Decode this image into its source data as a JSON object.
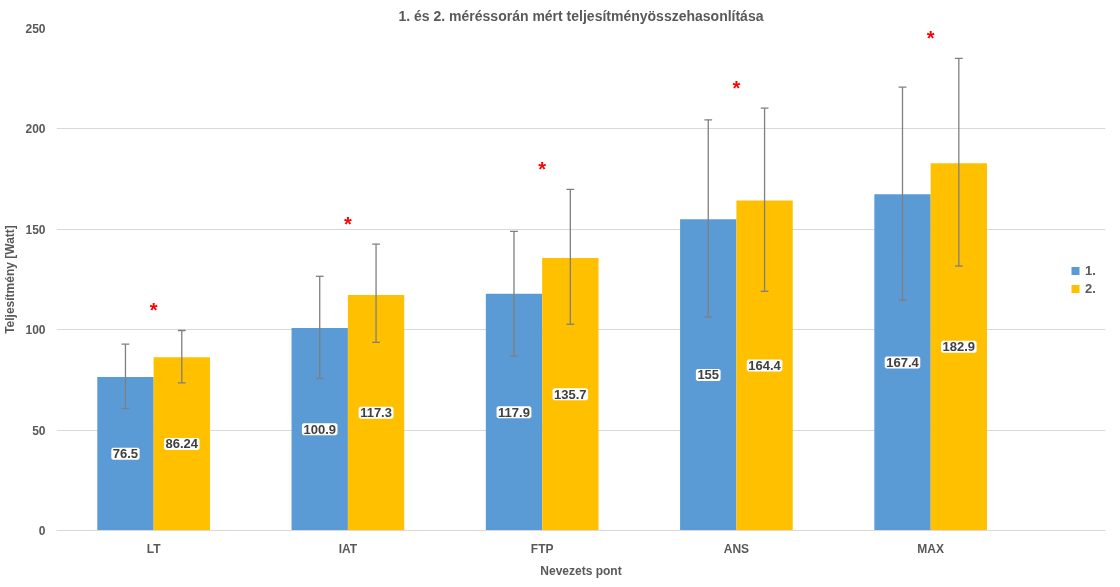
{
  "chart_data": {
    "type": "bar",
    "title": "1. és 2. méréssorán mért teljesítményösszehasonlítása",
    "xlabel": "Nevezets pont",
    "ylabel": "Teljesítmény [Watt]",
    "categories": [
      "LT",
      "IAT",
      "FTP",
      "ANS",
      "MAX"
    ],
    "series": [
      {
        "name": "1.",
        "color": "#5b9bd5",
        "values": [
          76.5,
          100.9,
          117.9,
          155,
          167.4
        ],
        "errors": [
          [
            60.7,
            92.8
          ],
          [
            75.7,
            126.6
          ],
          [
            86.9,
            149.0
          ],
          [
            106.3,
            204.5
          ],
          [
            114.7,
            220.8
          ]
        ]
      },
      {
        "name": "2.",
        "color": "#ffc000",
        "values": [
          86.24,
          117.3,
          135.7,
          164.4,
          182.9
        ],
        "errors": [
          [
            73.5,
            99.6
          ],
          [
            93.7,
            142.6
          ],
          [
            102.7,
            169.9
          ],
          [
            119.1,
            210.3
          ],
          [
            131.7,
            235.1
          ]
        ]
      }
    ],
    "ylim": [
      0,
      250
    ],
    "yticks": [
      0,
      50,
      100,
      150,
      200,
      250
    ],
    "grid": "y",
    "legend": "right",
    "data_labels": true,
    "annotations": [
      "*",
      "*",
      "*",
      "*",
      "*"
    ]
  }
}
